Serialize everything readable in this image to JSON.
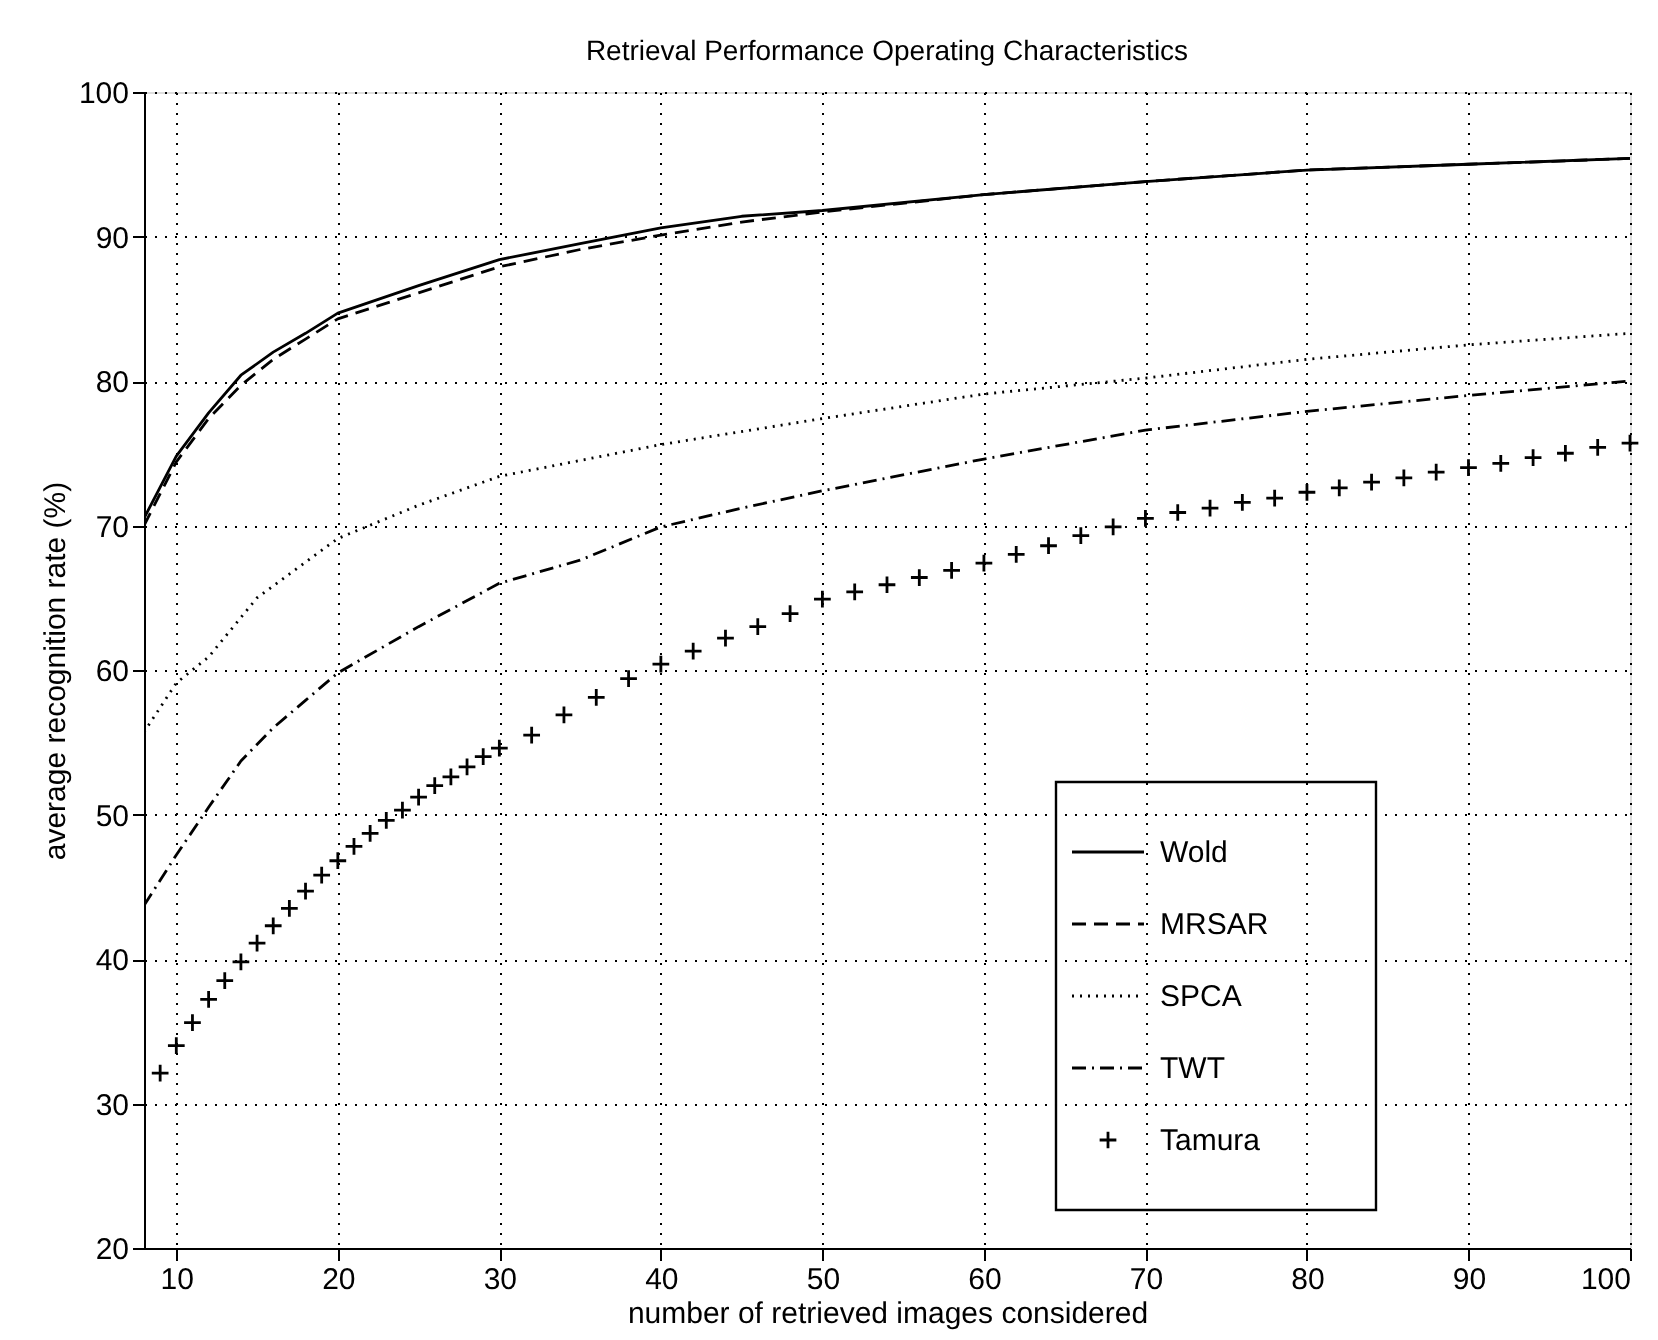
{
  "chart_data": {
    "type": "line",
    "title": "Retrieval Performance Operating Characteristics",
    "xlabel": "number of retrieved images considered",
    "ylabel": "average recognition rate (%)",
    "xlim": [
      8,
      100
    ],
    "ylim": [
      20,
      100
    ],
    "xticks": [
      10,
      20,
      30,
      40,
      50,
      60,
      70,
      80,
      90,
      100
    ],
    "yticks": [
      20,
      30,
      40,
      50,
      60,
      70,
      80,
      90,
      100
    ],
    "grid": true,
    "legend": "bottom right",
    "series": [
      {
        "name": "Wold",
        "color": "#000000",
        "line_style": "solid",
        "x": [
          8,
          10,
          12,
          14,
          16,
          18,
          20,
          25,
          30,
          35,
          40,
          45,
          50,
          60,
          70,
          80,
          90,
          100
        ],
        "values": [
          70.5,
          74.8,
          77.8,
          80.4,
          82,
          83.3,
          84.7,
          86.6,
          88.4,
          89.5,
          90.6,
          91.4,
          91.8,
          92.9,
          93.8,
          94.6,
          95,
          95.4
        ]
      },
      {
        "name": "MRSAR",
        "color": "#000000",
        "line_style": "dashed",
        "x": [
          8,
          10,
          12,
          14,
          16,
          18,
          20,
          25,
          30,
          35,
          40,
          45,
          50,
          60,
          70,
          80,
          90,
          100
        ],
        "values": [
          70,
          74.4,
          77.4,
          79.7,
          81.5,
          82.9,
          84.3,
          86.1,
          87.9,
          89.1,
          90.1,
          91,
          91.7,
          92.9,
          93.8,
          94.6,
          95,
          95.4
        ]
      },
      {
        "name": "SPCA",
        "color": "#000000",
        "line_style": "dotted",
        "x": [
          8,
          10,
          11,
          12,
          15,
          20,
          25,
          30,
          40,
          50,
          60,
          70,
          80,
          90,
          100
        ],
        "values": [
          55.7,
          59.1,
          60,
          60.9,
          65,
          69.1,
          71.4,
          73.4,
          75.6,
          77.4,
          79.1,
          80.2,
          81.5,
          82.5,
          83.3
        ]
      },
      {
        "name": "TWT",
        "color": "#000000",
        "line_style": "dashdot",
        "x": [
          8,
          10,
          12,
          14,
          16,
          18,
          20,
          25,
          30,
          35,
          40,
          45,
          50,
          60,
          70,
          80,
          90,
          100
        ],
        "values": [
          43.7,
          47.2,
          50.5,
          53.7,
          56,
          57.9,
          59.8,
          63,
          66,
          67.6,
          69.9,
          71.2,
          72.4,
          74.6,
          76.6,
          77.9,
          79,
          80
        ]
      },
      {
        "name": "Tamura",
        "color": "#000000",
        "type": "scatter",
        "marker": "cross",
        "x": [
          9,
          10,
          11,
          12,
          13,
          14,
          15,
          16,
          17,
          18,
          19,
          20,
          21,
          22,
          23,
          24,
          25,
          26,
          27,
          28,
          29,
          30,
          32,
          34,
          36,
          38,
          40,
          42,
          44,
          46,
          48,
          50,
          52,
          54,
          56,
          58,
          60,
          62,
          64,
          66,
          68,
          70,
          72,
          74,
          76,
          78,
          80,
          82,
          84,
          86,
          88,
          90,
          92,
          94,
          96,
          98,
          100
        ],
        "values": [
          32.1,
          34,
          35.6,
          37.2,
          38.5,
          39.8,
          41.1,
          42.3,
          43.5,
          44.7,
          45.8,
          46.8,
          47.8,
          48.7,
          49.6,
          50.3,
          51.2,
          52,
          52.6,
          53.3,
          54,
          54.6,
          55.5,
          56.9,
          58.1,
          59.4,
          60.4,
          61.3,
          62.2,
          63.0,
          63.9,
          64.9,
          65.4,
          65.9,
          66.4,
          66.9,
          67.4,
          68.0,
          68.6,
          69.3,
          69.9,
          70.5,
          70.9,
          71.2,
          71.6,
          71.9,
          72.3,
          72.6,
          73.0,
          73.3,
          73.7,
          74.0,
          74.3,
          74.7,
          75.0,
          75.4,
          75.7
        ]
      }
    ]
  }
}
